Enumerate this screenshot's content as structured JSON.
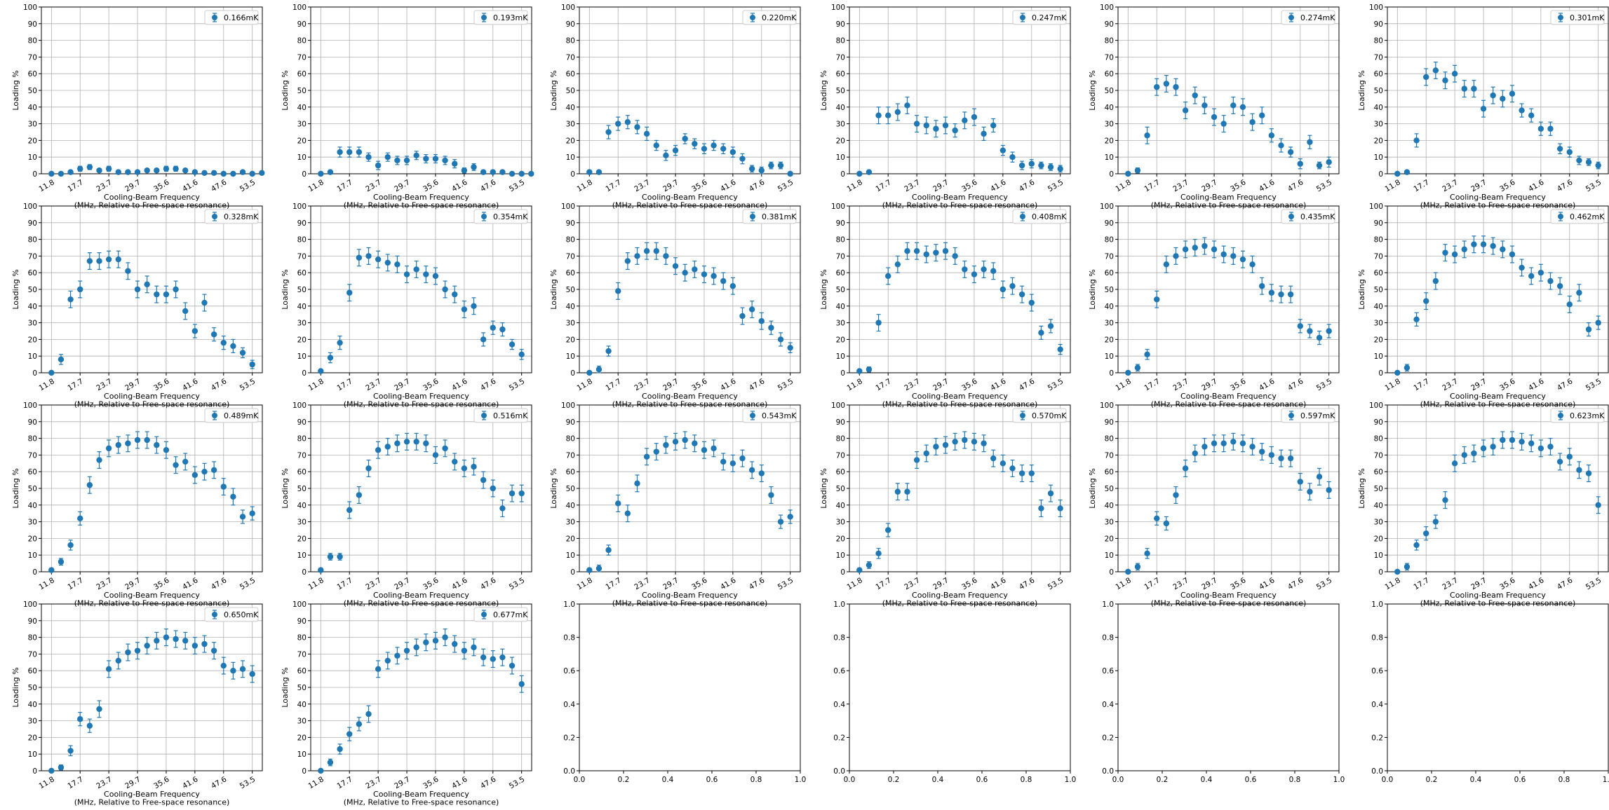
{
  "chart_data": {
    "type": "scatter",
    "layout": {
      "rows": 4,
      "cols": 6
    },
    "x_ticks": [
      "11.8",
      "17.7",
      "23.7",
      "29.7",
      "35.6",
      "41.6",
      "47.6",
      "53.5"
    ],
    "x_tick_positions": [
      0,
      3,
      6,
      9,
      12,
      15,
      18,
      21
    ],
    "xlabel": "Cooling-Beam Frequency\n(MHz, Relative to Free-space resonance)",
    "ylabel": "Loading %",
    "ylim": [
      0,
      100
    ],
    "y_ticks": [
      0,
      10,
      20,
      30,
      40,
      50,
      60,
      70,
      80,
      90,
      100
    ],
    "grid": true,
    "legend_position": "top-right",
    "series_color": "#1f77b4",
    "panels": [
      {
        "name": "0.166mK",
        "values": [
          0,
          0,
          1,
          3,
          4,
          2,
          3,
          1,
          1,
          1,
          2,
          2,
          3,
          3,
          2,
          1,
          0.5,
          0.5,
          0,
          0,
          1,
          0,
          0.5
        ],
        "errors": [
          1,
          1,
          1,
          1.5,
          1.5,
          1,
          1.5,
          1,
          1,
          1,
          1,
          1,
          1.5,
          1.5,
          1,
          1,
          1,
          1,
          1,
          1,
          1,
          1,
          1
        ]
      },
      {
        "name": "0.193mK",
        "values": [
          0,
          1,
          13,
          13,
          13,
          10,
          5,
          10,
          8,
          8,
          11,
          9,
          9,
          8,
          6,
          2,
          4,
          1,
          1,
          1,
          0,
          0,
          0
        ],
        "errors": [
          1,
          1,
          3,
          3,
          3,
          2.5,
          2.5,
          2.5,
          2.5,
          2.5,
          2.5,
          2.5,
          2.5,
          2.5,
          2.5,
          1.5,
          2,
          1,
          1,
          1,
          1,
          1,
          1
        ]
      },
      {
        "name": "0.220mK",
        "values": [
          1,
          1,
          25,
          30,
          31,
          28,
          24,
          17,
          11,
          14,
          21,
          18,
          15,
          17,
          15,
          13,
          9,
          3,
          2,
          5,
          5,
          0
        ],
        "errors": [
          1,
          1,
          4,
          4,
          4,
          4,
          4,
          3,
          3,
          3,
          3,
          3,
          3,
          3,
          3,
          3,
          3,
          2,
          2,
          2,
          2,
          1
        ]
      },
      {
        "name": "0.247mK",
        "values": [
          0,
          1,
          35,
          35,
          37,
          41,
          30,
          29,
          27,
          29,
          26,
          32,
          34,
          24,
          29,
          14,
          10,
          5,
          6,
          5,
          4,
          3
        ],
        "errors": [
          1,
          1,
          5,
          5,
          5,
          5,
          5,
          5,
          5,
          5,
          4,
          5,
          5,
          4,
          4,
          3,
          3,
          2.5,
          2.5,
          2,
          2,
          2
        ]
      },
      {
        "name": "0.274mK",
        "values": [
          0,
          2,
          23,
          52,
          54,
          52,
          38,
          47,
          41,
          34,
          30,
          41,
          40,
          31,
          35,
          23,
          17,
          13,
          6,
          19,
          5,
          7
        ],
        "errors": [
          1,
          1.5,
          5,
          5,
          5,
          5,
          5,
          5,
          5,
          5,
          5,
          5,
          5,
          5,
          5,
          4,
          4,
          3,
          3,
          4,
          2,
          3
        ]
      },
      {
        "name": "0.301mK",
        "values": [
          0,
          1,
          20,
          58,
          62,
          56,
          60,
          51,
          51,
          39,
          47,
          45,
          48,
          38,
          35,
          27,
          27,
          15,
          13,
          8,
          7,
          5
        ],
        "errors": [
          1,
          1,
          4,
          5,
          5,
          5,
          5,
          5,
          5,
          5,
          5,
          5,
          5,
          4,
          4,
          4,
          4,
          3,
          3,
          2.5,
          2,
          2
        ]
      },
      {
        "name": "0.328mK",
        "values": [
          0,
          8,
          44,
          50,
          67,
          67,
          68,
          68,
          61,
          50,
          53,
          47,
          47,
          50,
          37,
          25,
          42,
          23,
          18,
          16,
          12,
          5
        ],
        "errors": [
          1,
          3,
          5,
          5,
          5,
          5,
          5,
          5,
          5,
          5,
          5,
          5,
          5,
          5,
          5,
          4,
          5,
          4,
          4,
          4,
          3,
          2.5
        ]
      },
      {
        "name": "0.354mK",
        "values": [
          1,
          9,
          18,
          48,
          69,
          70,
          68,
          66,
          65,
          59,
          62,
          59,
          58,
          50,
          47,
          38,
          40,
          20,
          27,
          26,
          17,
          11
        ],
        "errors": [
          1,
          3,
          4,
          5,
          5,
          5,
          5,
          5,
          5,
          5,
          5,
          5,
          5,
          5,
          5,
          5,
          5,
          4,
          4,
          4,
          3,
          3
        ]
      },
      {
        "name": "0.381mK",
        "values": [
          0,
          2,
          13,
          49,
          67,
          70,
          73,
          73,
          70,
          64,
          60,
          62,
          59,
          58,
          55,
          52,
          34,
          38,
          31,
          27,
          20,
          15
        ],
        "errors": [
          1,
          2,
          3,
          5,
          5,
          5,
          5,
          5,
          5,
          5,
          5,
          5,
          5,
          5,
          5,
          5,
          5,
          5,
          5,
          4,
          4,
          3
        ]
      },
      {
        "name": "0.408mK",
        "values": [
          1,
          2,
          30,
          58,
          65,
          73,
          73,
          71,
          72,
          73,
          70,
          62,
          59,
          62,
          61,
          50,
          52,
          47,
          42,
          24,
          28,
          14
        ],
        "errors": [
          1,
          1.5,
          5,
          5,
          5,
          5,
          5,
          5,
          5,
          5,
          5,
          5,
          5,
          5,
          5,
          5,
          5,
          5,
          5,
          4,
          4,
          3
        ]
      },
      {
        "name": "0.435mK",
        "values": [
          0,
          3,
          11,
          44,
          65,
          70,
          74,
          75,
          76,
          74,
          71,
          70,
          68,
          65,
          52,
          48,
          47,
          47,
          28,
          25,
          21,
          25
        ],
        "errors": [
          1,
          2,
          3,
          5,
          5,
          5,
          5,
          5,
          5,
          5,
          5,
          5,
          5,
          5,
          5,
          5,
          5,
          5,
          4,
          4,
          4,
          4
        ]
      },
      {
        "name": "0.462mK",
        "values": [
          0,
          3,
          32,
          43,
          55,
          72,
          71,
          74,
          77,
          77,
          76,
          74,
          71,
          63,
          58,
          60,
          55,
          52,
          41,
          48,
          26,
          30
        ],
        "errors": [
          1,
          2,
          4,
          5,
          5,
          5,
          5,
          5,
          5,
          5,
          5,
          5,
          5,
          5,
          5,
          5,
          5,
          5,
          5,
          5,
          4,
          4
        ]
      },
      {
        "name": "0.489mK",
        "values": [
          1,
          6,
          16,
          32,
          52,
          67,
          74,
          76,
          77,
          79,
          79,
          76,
          73,
          64,
          66,
          58,
          60,
          61,
          51,
          45,
          33,
          35
        ],
        "errors": [
          1,
          2,
          3,
          4,
          5,
          5,
          5,
          5,
          5,
          5,
          5,
          5,
          5,
          5,
          5,
          5,
          5,
          5,
          5,
          5,
          4,
          4
        ]
      },
      {
        "name": "0.516mK",
        "values": [
          1,
          9,
          9,
          37,
          46,
          62,
          73,
          75,
          77,
          78,
          78,
          77,
          70,
          74,
          66,
          62,
          63,
          55,
          50,
          38,
          47,
          47
        ],
        "errors": [
          1,
          2,
          2,
          5,
          5,
          5,
          5,
          5,
          5,
          5,
          5,
          5,
          5,
          5,
          5,
          5,
          5,
          5,
          5,
          5,
          5,
          5
        ]
      },
      {
        "name": "0.543mK",
        "values": [
          1,
          2,
          13,
          41,
          35,
          53,
          69,
          72,
          76,
          78,
          79,
          77,
          73,
          74,
          66,
          65,
          68,
          61,
          59,
          46,
          30,
          33
        ],
        "errors": [
          1,
          2,
          3,
          5,
          5,
          5,
          5,
          5,
          5,
          5,
          5,
          5,
          5,
          5,
          5,
          5,
          5,
          5,
          5,
          5,
          4,
          4
        ]
      },
      {
        "name": "0.570mK",
        "values": [
          1,
          4,
          11,
          25,
          48,
          48,
          67,
          71,
          75,
          76,
          78,
          79,
          78,
          77,
          68,
          65,
          62,
          59,
          59,
          38,
          47,
          38
        ],
        "errors": [
          1,
          2,
          3,
          4,
          5,
          5,
          5,
          5,
          5,
          5,
          5,
          5,
          5,
          5,
          5,
          5,
          5,
          5,
          5,
          5,
          5,
          5
        ]
      },
      {
        "name": "0.597mK",
        "values": [
          0,
          3,
          11,
          32,
          29,
          46,
          62,
          71,
          75,
          77,
          77,
          78,
          77,
          75,
          72,
          70,
          68,
          68,
          54,
          48,
          57,
          49
        ],
        "errors": [
          1,
          2,
          3,
          4,
          4,
          5,
          5,
          5,
          5,
          5,
          5,
          5,
          5,
          5,
          5,
          5,
          5,
          5,
          5,
          5,
          5,
          5
        ]
      },
      {
        "name": "0.623mK",
        "values": [
          0,
          3,
          16,
          23,
          30,
          43,
          65,
          70,
          71,
          74,
          75,
          79,
          79,
          78,
          77,
          74,
          75,
          66,
          69,
          61,
          59,
          40
        ],
        "errors": [
          1,
          2,
          3,
          4,
          4,
          5,
          5,
          5,
          5,
          5,
          5,
          5,
          5,
          5,
          5,
          5,
          5,
          5,
          5,
          5,
          5,
          5
        ]
      },
      {
        "name": "0.650mK",
        "values": [
          0,
          2,
          12,
          31,
          27,
          37,
          61,
          66,
          71,
          72,
          75,
          78,
          80,
          79,
          78,
          75,
          76,
          72,
          63,
          60,
          61,
          58
        ],
        "errors": [
          1,
          1.5,
          3,
          4,
          4,
          5,
          5,
          5,
          5,
          5,
          5,
          5,
          5,
          5,
          5,
          5,
          5,
          5,
          5,
          5,
          5,
          5
        ]
      },
      {
        "name": "0.677mK",
        "values": [
          0,
          5,
          13,
          22,
          28,
          34,
          61,
          66,
          69,
          72,
          74,
          77,
          78,
          80,
          76,
          72,
          74,
          68,
          67,
          68,
          63,
          52
        ],
        "errors": [
          1,
          2,
          3,
          4,
          4,
          5,
          5,
          5,
          5,
          5,
          5,
          5,
          5,
          5,
          5,
          5,
          5,
          5,
          5,
          5,
          5,
          5
        ]
      }
    ],
    "empty_axes": {
      "count": 4,
      "xlim": [
        0,
        1
      ],
      "ylim": [
        0,
        1
      ],
      "ticks": [
        "0.0",
        "0.2",
        "0.4",
        "0.6",
        "0.8",
        "1.0"
      ]
    }
  }
}
